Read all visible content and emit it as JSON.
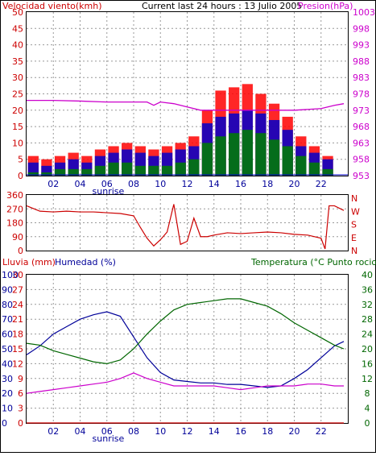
{
  "colors": {
    "wind_axis": "#cc0000",
    "pressure_axis": "#cc00cc",
    "dir_axis": "#cc0000",
    "rain_axis": "#cc0000",
    "humidity_axis": "#000099",
    "temp_axis": "#006600",
    "dewpoint": "#cc00cc",
    "gust": "#ff0000",
    "avg_wind": "#0000cc",
    "low_wind": "#008000",
    "rain": "#cc0000",
    "text": "#000000"
  },
  "chart_data": [
    {
      "type": "bar",
      "title": "Current last 24 hours : 13 Julio 2005",
      "ylabel": "Velocidad viento(kmh)",
      "y2label": "Presion(hPa)",
      "ylim": [
        0,
        50
      ],
      "yticks": [
        "0",
        "5",
        "10",
        "15",
        "20",
        "25",
        "30",
        "35",
        "40",
        "45",
        "50"
      ],
      "y2lim": [
        953,
        1003
      ],
      "y2ticks": [
        "953",
        "958",
        "963",
        "968",
        "973",
        "978",
        "983",
        "988",
        "993",
        "998",
        "1003"
      ],
      "xlim": [
        0,
        24
      ],
      "xticks": [
        "02",
        "04",
        "06",
        "08",
        "10",
        "12",
        "14",
        "16",
        "18",
        "20",
        "22"
      ],
      "xtick_values": [
        2,
        4,
        6,
        8,
        10,
        12,
        14,
        16,
        18,
        20,
        22
      ],
      "marker": "sunrise",
      "marker_x": 6.1,
      "series": [
        {
          "role": "gust",
          "x": [
            0,
            1,
            2,
            3,
            4,
            5,
            6,
            7,
            8,
            9,
            10,
            11,
            12,
            13,
            14,
            15,
            16,
            17,
            18,
            19,
            20,
            21,
            22,
            23
          ],
          "values": [
            6,
            5,
            6,
            7,
            6,
            8,
            9,
            10,
            9,
            8,
            9,
            10,
            12,
            20,
            26,
            27,
            28,
            25,
            22,
            18,
            12,
            9,
            6,
            0
          ]
        },
        {
          "role": "average",
          "x": [
            0,
            1,
            2,
            3,
            4,
            5,
            6,
            7,
            8,
            9,
            10,
            11,
            12,
            13,
            14,
            15,
            16,
            17,
            18,
            19,
            20,
            21,
            22,
            23
          ],
          "values": [
            4,
            3,
            4,
            5,
            4,
            6,
            7,
            8,
            7,
            6,
            7,
            8,
            9,
            16,
            18,
            19,
            20,
            19,
            17,
            14,
            9,
            7,
            5,
            0
          ]
        },
        {
          "role": "low",
          "x": [
            0,
            1,
            2,
            3,
            4,
            5,
            6,
            7,
            8,
            9,
            10,
            11,
            12,
            13,
            14,
            15,
            16,
            17,
            18,
            19,
            20,
            21,
            22,
            23
          ],
          "values": [
            1,
            1,
            2,
            2,
            2,
            3,
            4,
            4,
            3,
            3,
            3,
            4,
            5,
            10,
            12,
            13,
            14,
            13,
            11,
            9,
            6,
            4,
            2,
            0
          ]
        },
        {
          "role": "pressure",
          "x": [
            0,
            2,
            4,
            6,
            8,
            9,
            9.5,
            10,
            11,
            12,
            13,
            14,
            16,
            18,
            20,
            22,
            23,
            23.7
          ],
          "values": [
            976,
            976,
            975.8,
            975.5,
            975.5,
            975.5,
            974.5,
            975.5,
            975,
            974,
            973,
            973,
            973,
            973,
            973,
            973.5,
            974.5,
            975
          ]
        }
      ]
    },
    {
      "type": "line",
      "ylim": [
        0,
        360
      ],
      "yticks": [
        "0",
        "90",
        "180",
        "270",
        "360"
      ],
      "y2ticks": [
        "N",
        "W",
        "S",
        "E",
        "N"
      ],
      "xlim": [
        0,
        24
      ],
      "series": [
        {
          "role": "direction",
          "x": [
            0,
            1,
            2,
            3,
            4,
            5,
            6,
            7,
            8,
            8.5,
            9,
            9.5,
            10,
            10.5,
            11,
            11.5,
            12,
            12.5,
            13,
            13.5,
            14,
            15,
            16,
            17,
            18,
            19,
            20,
            21,
            22,
            22.3,
            22.6,
            23,
            23.7
          ],
          "values": [
            290,
            255,
            250,
            255,
            250,
            250,
            245,
            240,
            225,
            150,
            80,
            30,
            70,
            120,
            300,
            40,
            60,
            210,
            90,
            90,
            100,
            115,
            110,
            115,
            120,
            115,
            105,
            100,
            80,
            10,
            290,
            290,
            260
          ]
        }
      ]
    },
    {
      "type": "line",
      "ylabel": "Lluvia (mm)",
      "y2label": "Humedad (%)",
      "y3label": "Temperatura (°C Punto rocio",
      "ylim": [
        0,
        30
      ],
      "yticks": [
        "0",
        "3",
        "6",
        "9",
        "12",
        "15",
        "18",
        "21",
        "24",
        "27",
        "30"
      ],
      "y2lim": [
        0,
        100
      ],
      "y2ticks": [
        "0",
        "10",
        "20",
        "30",
        "40",
        "50",
        "60",
        "70",
        "80",
        "90",
        "100"
      ],
      "y3lim": [
        0,
        40
      ],
      "y3ticks": [
        "0",
        "4",
        "8",
        "12",
        "16",
        "20",
        "24",
        "28",
        "32",
        "36",
        "40"
      ],
      "xlim": [
        0,
        24
      ],
      "xticks": [
        "02",
        "04",
        "06",
        "08",
        "10",
        "12",
        "14",
        "16",
        "18",
        "20",
        "22"
      ],
      "xtick_values": [
        2,
        4,
        6,
        8,
        10,
        12,
        14,
        16,
        18,
        20,
        22
      ],
      "marker": "sunrise",
      "marker_x": 6.1,
      "series": [
        {
          "role": "humidity",
          "x": [
            0,
            1,
            2,
            3,
            4,
            5,
            6,
            7,
            8,
            9,
            10,
            11,
            12,
            13,
            14,
            15,
            16,
            17,
            18,
            19,
            20,
            21,
            22,
            23,
            23.7
          ],
          "values": [
            46,
            52,
            60,
            65,
            70,
            73,
            75,
            72,
            58,
            44,
            34,
            29,
            28,
            27,
            27,
            26,
            26,
            25,
            24,
            25,
            30,
            36,
            44,
            52,
            55
          ]
        },
        {
          "role": "temperature",
          "x": [
            0,
            1,
            2,
            3,
            4,
            5,
            6,
            7,
            8,
            9,
            10,
            11,
            12,
            13,
            14,
            15,
            16,
            17,
            18,
            19,
            20,
            21,
            22,
            23,
            23.7
          ],
          "values": [
            21.5,
            21,
            19.5,
            18.5,
            17.5,
            16.5,
            16,
            17,
            20,
            24,
            27.5,
            30.5,
            32,
            32.5,
            33,
            33.5,
            33.5,
            32.5,
            31.5,
            29.5,
            27,
            25,
            23,
            21,
            20
          ]
        },
        {
          "role": "dewpoint",
          "x": [
            0,
            1,
            2,
            3,
            4,
            5,
            6,
            7,
            8,
            9,
            10,
            11,
            12,
            13,
            14,
            15,
            16,
            17,
            18,
            19,
            20,
            21,
            22,
            23,
            23.7
          ],
          "values": [
            8,
            8.5,
            9,
            9.5,
            10,
            10.5,
            11,
            12,
            13.5,
            12,
            11,
            10,
            10,
            10,
            10,
            9.5,
            9,
            9.5,
            10,
            10,
            10,
            10.5,
            10.5,
            10,
            10
          ]
        },
        {
          "role": "rain",
          "x": [
            0,
            23.7
          ],
          "values": [
            0,
            0
          ]
        }
      ]
    }
  ],
  "panel1": {
    "ylabel": "Velocidad viento(kmh)",
    "title": "Current last 24 hours : 13 Julio 2005",
    "y2label": "Presion(hPa)"
  },
  "panel2": {},
  "panel3": {
    "ylabel": "Lluvia (mm)",
    "y2label": "Humedad (%)",
    "y3label": "Temperatura (°C Punto rocio"
  }
}
